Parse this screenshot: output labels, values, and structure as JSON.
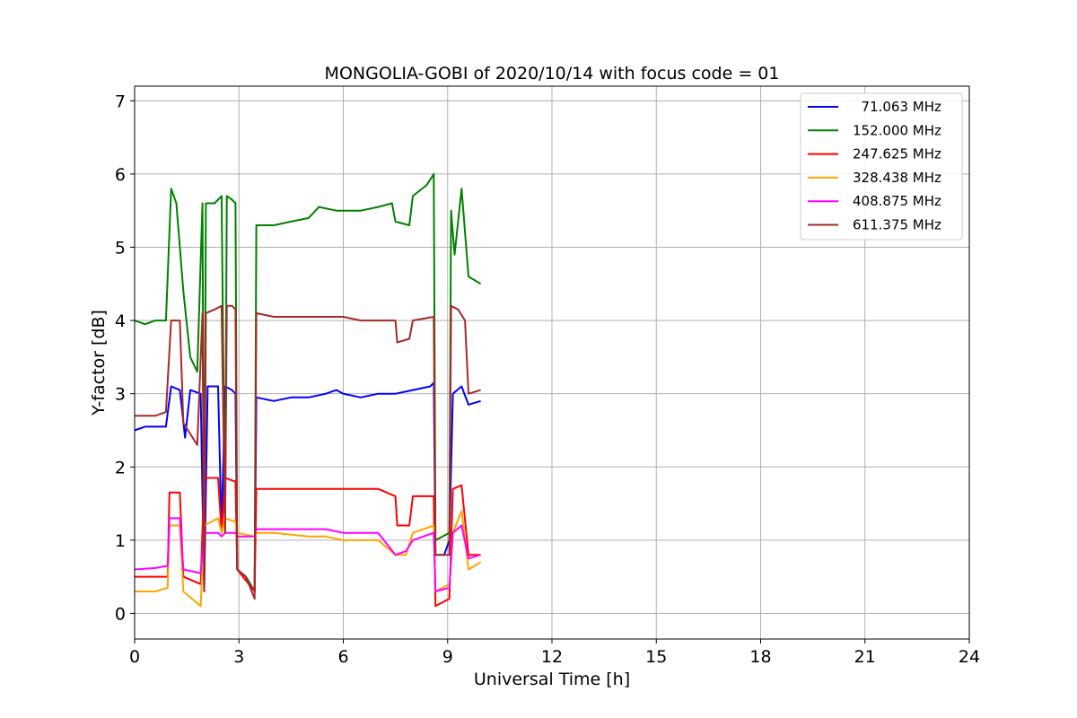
{
  "chart_data": {
    "type": "line",
    "title": "MONGOLIA-GOBI of 2020/10/14 with focus code = 01",
    "xlabel": "Universal Time [h]",
    "ylabel": "Y-factor [dB]",
    "xlim": [
      0,
      24
    ],
    "ylim": [
      -0.35,
      7.2
    ],
    "xticks": [
      0,
      3,
      6,
      9,
      12,
      15,
      18,
      21,
      24
    ],
    "yticks": [
      0,
      1,
      2,
      3,
      4,
      5,
      6,
      7
    ],
    "grid": true,
    "legend_position": "top-right",
    "series": [
      {
        "name": "  71.063 MHz",
        "color": "#0000ff",
        "points": [
          [
            0,
            2.5
          ],
          [
            0.3,
            2.55
          ],
          [
            0.6,
            2.55
          ],
          [
            0.9,
            2.55
          ],
          [
            1.05,
            3.1
          ],
          [
            1.3,
            3.05
          ],
          [
            1.45,
            2.4
          ],
          [
            1.6,
            3.05
          ],
          [
            1.9,
            3.0
          ],
          [
            2.0,
            0.3
          ],
          [
            2.1,
            3.1
          ],
          [
            2.4,
            3.1
          ],
          [
            2.5,
            1.1
          ],
          [
            2.6,
            3.1
          ],
          [
            2.8,
            3.05
          ],
          [
            2.9,
            3.0
          ],
          [
            2.95,
            0.6
          ],
          [
            3.2,
            0.5
          ],
          [
            3.45,
            0.3
          ],
          [
            3.5,
            2.95
          ],
          [
            4.0,
            2.9
          ],
          [
            4.5,
            2.95
          ],
          [
            5.0,
            2.95
          ],
          [
            5.5,
            3.0
          ],
          [
            5.8,
            3.05
          ],
          [
            6.0,
            3.0
          ],
          [
            6.5,
            2.95
          ],
          [
            7.0,
            3.0
          ],
          [
            7.5,
            3.0
          ],
          [
            8.0,
            3.05
          ],
          [
            8.5,
            3.1
          ],
          [
            8.6,
            3.15
          ],
          [
            8.65,
            0.8
          ],
          [
            8.9,
            0.8
          ],
          [
            9.05,
            1.0
          ],
          [
            9.15,
            3.0
          ],
          [
            9.4,
            3.1
          ],
          [
            9.6,
            2.85
          ],
          [
            9.95,
            2.9
          ]
        ]
      },
      {
        "name": "152.000 MHz",
        "color": "#008000",
        "points": [
          [
            0,
            4.0
          ],
          [
            0.3,
            3.95
          ],
          [
            0.6,
            4.0
          ],
          [
            0.9,
            4.0
          ],
          [
            1.05,
            5.8
          ],
          [
            1.2,
            5.6
          ],
          [
            1.4,
            4.4
          ],
          [
            1.6,
            3.5
          ],
          [
            1.8,
            3.3
          ],
          [
            1.95,
            5.6
          ],
          [
            2.0,
            0.3
          ],
          [
            2.05,
            5.6
          ],
          [
            2.3,
            5.6
          ],
          [
            2.5,
            5.7
          ],
          [
            2.6,
            1.1
          ],
          [
            2.65,
            5.7
          ],
          [
            2.8,
            5.65
          ],
          [
            2.9,
            5.6
          ],
          [
            2.95,
            0.6
          ],
          [
            3.2,
            0.5
          ],
          [
            3.45,
            0.3
          ],
          [
            3.5,
            5.3
          ],
          [
            4.0,
            5.3
          ],
          [
            4.5,
            5.35
          ],
          [
            5.0,
            5.4
          ],
          [
            5.3,
            5.55
          ],
          [
            5.8,
            5.5
          ],
          [
            6.0,
            5.5
          ],
          [
            6.5,
            5.5
          ],
          [
            7.0,
            5.55
          ],
          [
            7.4,
            5.6
          ],
          [
            7.5,
            5.35
          ],
          [
            7.9,
            5.3
          ],
          [
            8.0,
            5.7
          ],
          [
            8.4,
            5.85
          ],
          [
            8.6,
            6.0
          ],
          [
            8.65,
            1.0
          ],
          [
            9.05,
            1.1
          ],
          [
            9.1,
            5.5
          ],
          [
            9.2,
            4.9
          ],
          [
            9.4,
            5.8
          ],
          [
            9.6,
            4.6
          ],
          [
            9.95,
            4.5
          ]
        ]
      },
      {
        "name": "247.625 MHz",
        "color": "#ff0000",
        "points": [
          [
            0,
            0.5
          ],
          [
            0.6,
            0.5
          ],
          [
            0.95,
            0.5
          ],
          [
            1.0,
            1.65
          ],
          [
            1.3,
            1.65
          ],
          [
            1.4,
            0.5
          ],
          [
            1.9,
            0.4
          ],
          [
            2.0,
            1.85
          ],
          [
            2.4,
            1.85
          ],
          [
            2.5,
            1.1
          ],
          [
            2.6,
            1.85
          ],
          [
            2.9,
            1.8
          ],
          [
            2.95,
            0.6
          ],
          [
            3.45,
            0.3
          ],
          [
            3.5,
            1.7
          ],
          [
            4.0,
            1.7
          ],
          [
            5.0,
            1.7
          ],
          [
            5.5,
            1.7
          ],
          [
            6.0,
            1.7
          ],
          [
            7.0,
            1.7
          ],
          [
            7.5,
            1.6
          ],
          [
            7.55,
            1.2
          ],
          [
            7.9,
            1.2
          ],
          [
            8.0,
            1.6
          ],
          [
            8.6,
            1.6
          ],
          [
            8.65,
            0.1
          ],
          [
            9.05,
            0.2
          ],
          [
            9.15,
            1.7
          ],
          [
            9.4,
            1.75
          ],
          [
            9.6,
            0.8
          ],
          [
            9.95,
            0.8
          ]
        ]
      },
      {
        "name": "328.438 MHz",
        "color": "#ffa500",
        "points": [
          [
            0,
            0.3
          ],
          [
            0.6,
            0.3
          ],
          [
            0.95,
            0.35
          ],
          [
            1.0,
            1.2
          ],
          [
            1.3,
            1.2
          ],
          [
            1.4,
            0.3
          ],
          [
            1.9,
            0.1
          ],
          [
            2.0,
            1.2
          ],
          [
            2.4,
            1.3
          ],
          [
            2.5,
            1.1
          ],
          [
            2.6,
            1.3
          ],
          [
            2.9,
            1.25
          ],
          [
            2.95,
            1.1
          ],
          [
            3.45,
            1.05
          ],
          [
            3.5,
            1.1
          ],
          [
            4.0,
            1.1
          ],
          [
            5.0,
            1.05
          ],
          [
            5.5,
            1.05
          ],
          [
            6.0,
            1.0
          ],
          [
            7.0,
            1.0
          ],
          [
            7.5,
            0.8
          ],
          [
            7.8,
            0.8
          ],
          [
            8.0,
            1.1
          ],
          [
            8.6,
            1.2
          ],
          [
            8.65,
            0.3
          ],
          [
            9.05,
            0.4
          ],
          [
            9.15,
            1.1
          ],
          [
            9.4,
            1.4
          ],
          [
            9.6,
            0.6
          ],
          [
            9.95,
            0.7
          ]
        ]
      },
      {
        "name": "408.875 MHz",
        "color": "#ff00ff",
        "points": [
          [
            0,
            0.6
          ],
          [
            0.6,
            0.62
          ],
          [
            0.95,
            0.65
          ],
          [
            1.0,
            1.3
          ],
          [
            1.3,
            1.3
          ],
          [
            1.4,
            0.6
          ],
          [
            1.9,
            0.55
          ],
          [
            2.0,
            1.1
          ],
          [
            2.4,
            1.1
          ],
          [
            2.5,
            1.05
          ],
          [
            2.6,
            1.1
          ],
          [
            2.9,
            1.1
          ],
          [
            2.95,
            1.05
          ],
          [
            3.45,
            1.05
          ],
          [
            3.5,
            1.15
          ],
          [
            4.0,
            1.15
          ],
          [
            5.0,
            1.15
          ],
          [
            5.5,
            1.15
          ],
          [
            6.0,
            1.1
          ],
          [
            7.0,
            1.1
          ],
          [
            7.5,
            0.8
          ],
          [
            7.8,
            0.85
          ],
          [
            8.0,
            1.0
          ],
          [
            8.6,
            1.1
          ],
          [
            8.65,
            0.3
          ],
          [
            9.05,
            0.35
          ],
          [
            9.15,
            1.1
          ],
          [
            9.4,
            1.2
          ],
          [
            9.6,
            0.75
          ],
          [
            9.95,
            0.8
          ]
        ]
      },
      {
        "name": "611.375 MHz",
        "color": "#a52a2a",
        "points": [
          [
            0,
            2.7
          ],
          [
            0.3,
            2.7
          ],
          [
            0.6,
            2.7
          ],
          [
            0.9,
            2.75
          ],
          [
            1.05,
            4.0
          ],
          [
            1.3,
            4.0
          ],
          [
            1.4,
            2.6
          ],
          [
            1.8,
            2.3
          ],
          [
            1.95,
            4.1
          ],
          [
            2.0,
            0.3
          ],
          [
            2.05,
            4.1
          ],
          [
            2.3,
            4.15
          ],
          [
            2.5,
            4.2
          ],
          [
            2.6,
            1.1
          ],
          [
            2.65,
            4.2
          ],
          [
            2.8,
            4.2
          ],
          [
            2.9,
            4.15
          ],
          [
            2.95,
            0.6
          ],
          [
            3.2,
            0.5
          ],
          [
            3.45,
            0.2
          ],
          [
            3.5,
            4.1
          ],
          [
            4.0,
            4.05
          ],
          [
            4.5,
            4.05
          ],
          [
            5.0,
            4.05
          ],
          [
            5.5,
            4.05
          ],
          [
            6.0,
            4.05
          ],
          [
            6.5,
            4.0
          ],
          [
            7.0,
            4.0
          ],
          [
            7.5,
            4.0
          ],
          [
            7.55,
            3.7
          ],
          [
            7.9,
            3.75
          ],
          [
            8.0,
            4.0
          ],
          [
            8.6,
            4.05
          ],
          [
            8.65,
            0.8
          ],
          [
            9.05,
            0.8
          ],
          [
            9.1,
            4.2
          ],
          [
            9.3,
            4.15
          ],
          [
            9.5,
            4.0
          ],
          [
            9.6,
            3.0
          ],
          [
            9.95,
            3.05
          ]
        ]
      }
    ]
  }
}
